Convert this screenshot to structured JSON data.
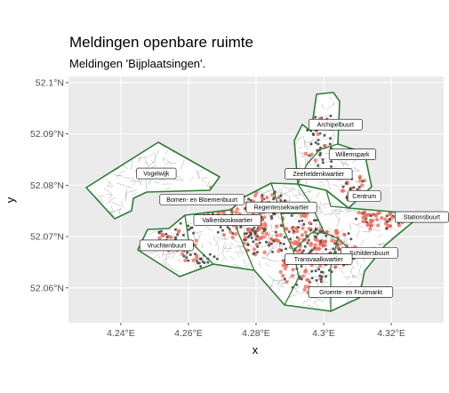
{
  "title": "Meldingen openbare ruimte",
  "subtitle": "Meldingen 'Bijplaatsingen'.",
  "colors": {
    "panel": "#ebebeb",
    "grid": "#ffffff",
    "boundary": "#2e7d32",
    "street": "#a0a0a0",
    "point_dark": "#4a4a4a",
    "point_red": "#f26a5a",
    "label_fill": "#ffffff",
    "label_border": "#000000"
  },
  "map": {
    "x_axis_title": "x",
    "y_axis_title": "y",
    "x_ticks": [
      {
        "value": 4.24,
        "label": "4.24°E"
      },
      {
        "value": 4.26,
        "label": "4.26°E"
      },
      {
        "value": 4.28,
        "label": "4.28°E"
      },
      {
        "value": 4.3,
        "label": "4.3°E"
      },
      {
        "value": 4.32,
        "label": "4.32°E"
      }
    ],
    "y_ticks": [
      {
        "value": 52.06,
        "label": "52.06°N"
      },
      {
        "value": 52.07,
        "label": "52.07°N"
      },
      {
        "value": 52.08,
        "label": "52.08°N"
      },
      {
        "value": 52.09,
        "label": "52.09°N"
      },
      {
        "value": 52.1,
        "label": "52.1°N"
      }
    ],
    "x_range": [
      4.2245,
      4.3355
    ],
    "y_range": [
      52.0532,
      52.1012
    ],
    "neighbourhoods": [
      {
        "name": "Archipelbuurt",
        "lon": 4.3035,
        "lat": 52.0918
      },
      {
        "name": "Willemspark",
        "lon": 4.3085,
        "lat": 52.086
      },
      {
        "name": "Vogelwijk",
        "lon": 4.2505,
        "lat": 52.0823
      },
      {
        "name": "Zeeheldenkwartier",
        "lon": 4.2985,
        "lat": 52.0822
      },
      {
        "name": "Centrum",
        "lon": 4.312,
        "lat": 52.0779
      },
      {
        "name": "Bomen- en Bloemenbuurt",
        "lon": 4.264,
        "lat": 52.0772
      },
      {
        "name": "Regentessekwartier",
        "lon": 4.2875,
        "lat": 52.0757
      },
      {
        "name": "Stationsbuurt",
        "lon": 4.329,
        "lat": 52.0738
      },
      {
        "name": "Valkenboskwartier",
        "lon": 4.2715,
        "lat": 52.0732
      },
      {
        "name": "Vruchtenbuurt",
        "lon": 4.2535,
        "lat": 52.0683
      },
      {
        "name": "Schildersbuurt",
        "lon": 4.3135,
        "lat": 52.0668
      },
      {
        "name": "Transvaalkwartier",
        "lon": 4.2985,
        "lat": 52.0656
      },
      {
        "name": "Groente- en Fruitmarkt",
        "lon": 4.308,
        "lat": 52.0592
      }
    ]
  }
}
